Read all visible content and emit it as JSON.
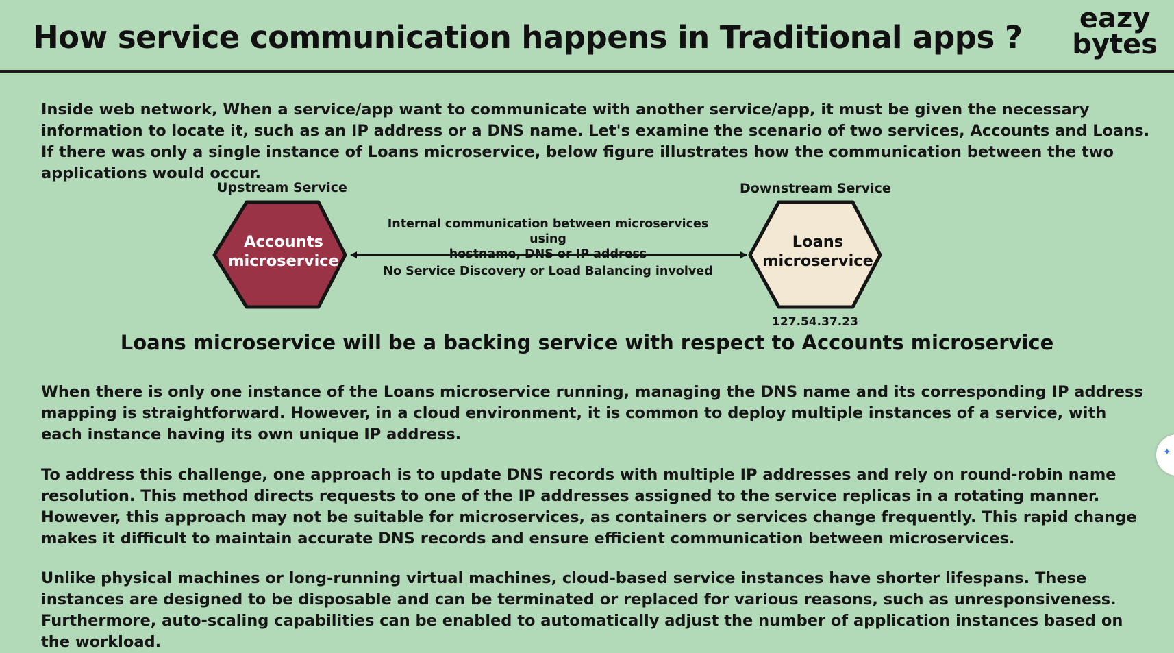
{
  "header": {
    "title": "How service communication happens in Traditional apps ?",
    "logo_line1": "eazy",
    "logo_line2": "bytes"
  },
  "intro": "Inside web network, When a service/app want to communicate with another service/app, it must be given the necessary information to locate it, such as an IP address or a DNS name. Let's examine the scenario of two services, Accounts and Loans. If there was only a single instance of Loans microservice, below figure illustrates how the communication between the two applications would occur.",
  "diagram": {
    "upstream_label": "Upstream Service",
    "downstream_label": "Downstream Service",
    "accounts_line1": "Accounts",
    "accounts_line2": "microservice",
    "loans_line1": "Loans",
    "loans_line2": "microservice",
    "arrow_top_line1": "Internal communication between microservices using",
    "arrow_top_line2": "hostname, DNS or IP address",
    "arrow_bottom": "No Service Discovery or Load Balancing involved",
    "ip_address": "127.54.37.23",
    "colors": {
      "accounts_fill": "#9a3346",
      "loans_fill": "#f3e8d4",
      "outline": "#151515"
    }
  },
  "subheading": "Loans microservice will be a backing service with respect to Accounts microservice",
  "paragraphs": {
    "p1": "When there is only one instance of the Loans microservice running, managing the DNS name and its corresponding IP address mapping is straightforward. However, in a cloud environment, it is common to deploy multiple instances of a service, with each instance having its own unique IP address.",
    "p2": "To address this challenge, one approach is to update DNS records with multiple IP addresses and rely on round-robin name resolution. This method directs requests to one of the IP addresses assigned to the service replicas in a rotating manner. However, this approach may not be suitable for microservices, as containers or services change frequently. This rapid change makes it difficult to maintain accurate DNS records and ensure efficient communication between microservices.",
    "p3": "Unlike physical machines or long-running virtual machines, cloud-based service instances have shorter lifespans. These instances are designed to be disposable and can be terminated or replaced for various reasons, such as unresponsiveness. Furthermore, auto-scaling capabilities can be enabled to automatically adjust the number of application instances based on the workload."
  },
  "side_widget_icon": "sparkle-icon"
}
